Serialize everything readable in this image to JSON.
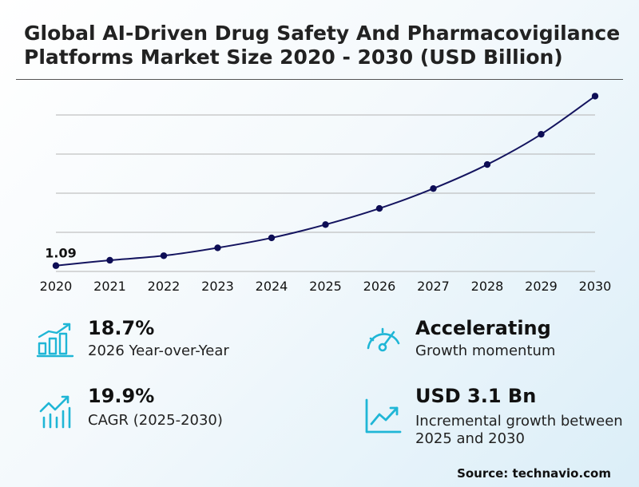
{
  "title": "Global AI-Driven Drug Safety And Pharmacovigilance Platforms Market Size 2020 - 2030 (USD Billion)",
  "chart_data": {
    "type": "line",
    "x": [
      2020,
      2021,
      2022,
      2023,
      2024,
      2025,
      2026,
      2027,
      2028,
      2029,
      2030
    ],
    "values": [
      1.09,
      1.22,
      1.33,
      1.52,
      1.76,
      2.08,
      2.47,
      2.95,
      3.53,
      4.26,
      5.18
    ],
    "data_labels": [
      {
        "x": 2020,
        "text": "1.09"
      }
    ],
    "ylim": [
      0.95,
      5.65
    ],
    "grid": true,
    "line_color": "#14145f",
    "point_color": "#0d0d55",
    "grid_color": "#b3b3b3"
  },
  "stats": [
    {
      "value": "18.7%",
      "label": "2026 Year-over-Year",
      "icon": "bar-chart-up-icon"
    },
    {
      "value": "Accelerating",
      "label": "Growth momentum",
      "icon": "speedometer-icon"
    },
    {
      "value": "19.9%",
      "label": "CAGR (2025-2030)",
      "icon": "trend-bars-icon"
    },
    {
      "value": "USD 3.1 Bn",
      "label": "Incremental growth between 2025 and 2030",
      "icon": "line-chart-up-icon"
    }
  ],
  "accent_color": "#1fb6d6",
  "source": "Source: technavio.com"
}
